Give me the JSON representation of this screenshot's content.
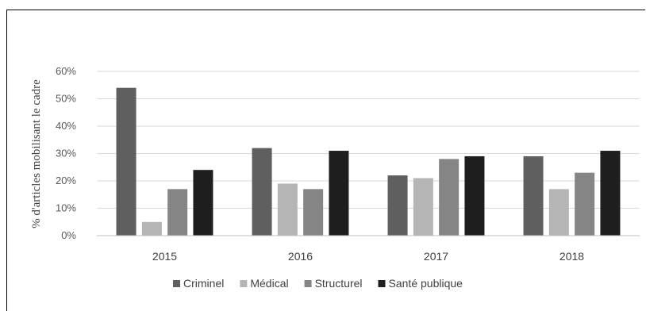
{
  "chart_data": {
    "type": "bar",
    "title": "",
    "ylabel": "% d'articles mobilisant le cadre",
    "xlabel": "",
    "categories": [
      "2015",
      "2016",
      "2017",
      "2018"
    ],
    "ylim": [
      0,
      0.6
    ],
    "yticks": [
      0,
      0.1,
      0.2,
      0.3,
      0.4,
      0.5,
      0.6
    ],
    "ytick_labels": [
      "0%",
      "10%",
      "20%",
      "30%",
      "40%",
      "50%",
      "60%"
    ],
    "grid": true,
    "legend_position": "bottom",
    "series": [
      {
        "name": "Criminel",
        "color": "#5f5f5f",
        "values": [
          0.54,
          0.32,
          0.22,
          0.29
        ]
      },
      {
        "name": "Médical",
        "color": "#b5b5b5",
        "values": [
          0.05,
          0.19,
          0.21,
          0.17
        ]
      },
      {
        "name": "Structurel",
        "color": "#858585",
        "values": [
          0.17,
          0.17,
          0.28,
          0.23
        ]
      },
      {
        "name": "Santé publique",
        "color": "#1e1e1e",
        "values": [
          0.24,
          0.31,
          0.29,
          0.31
        ]
      }
    ]
  }
}
